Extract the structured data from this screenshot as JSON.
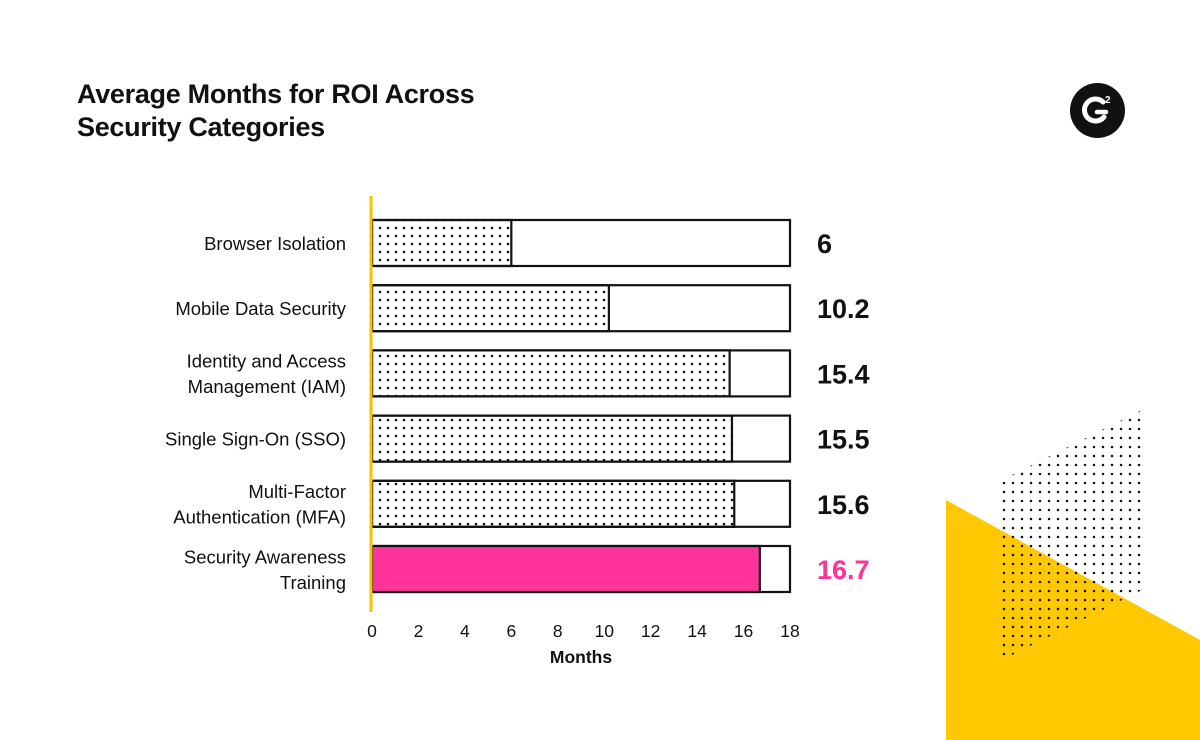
{
  "page": {
    "title_lines": [
      "Average Months for ROI Across",
      "Security Categories"
    ],
    "logo_icon": "g2-logo-icon"
  },
  "colors": {
    "axis": "#F7C200",
    "highlight": "#FF3399",
    "bar_outline": "#111111",
    "text": "#111111",
    "deco_yellow": "#FFC800"
  },
  "chart_data": {
    "type": "bar",
    "orientation": "horizontal",
    "categories": [
      [
        "Browser Isolation"
      ],
      [
        "Mobile Data Security"
      ],
      [
        "Identity and Access",
        "Management (IAM)"
      ],
      [
        "Single Sign-On (SSO)"
      ],
      [
        "Multi-Factor",
        "Authentication (MFA)"
      ],
      [
        "Security Awareness",
        "Training"
      ]
    ],
    "values": [
      6,
      10.2,
      15.4,
      15.5,
      15.6,
      16.7
    ],
    "value_labels": [
      "6",
      "10.2",
      "15.4",
      "15.5",
      "15.6",
      "16.7"
    ],
    "highlight_index": 5,
    "xlim": [
      0,
      18
    ],
    "xticks": [
      0,
      2,
      4,
      6,
      8,
      10,
      12,
      14,
      16,
      18
    ],
    "xlabel": "Months",
    "ylabel": "",
    "grid": false,
    "legend": "none"
  }
}
